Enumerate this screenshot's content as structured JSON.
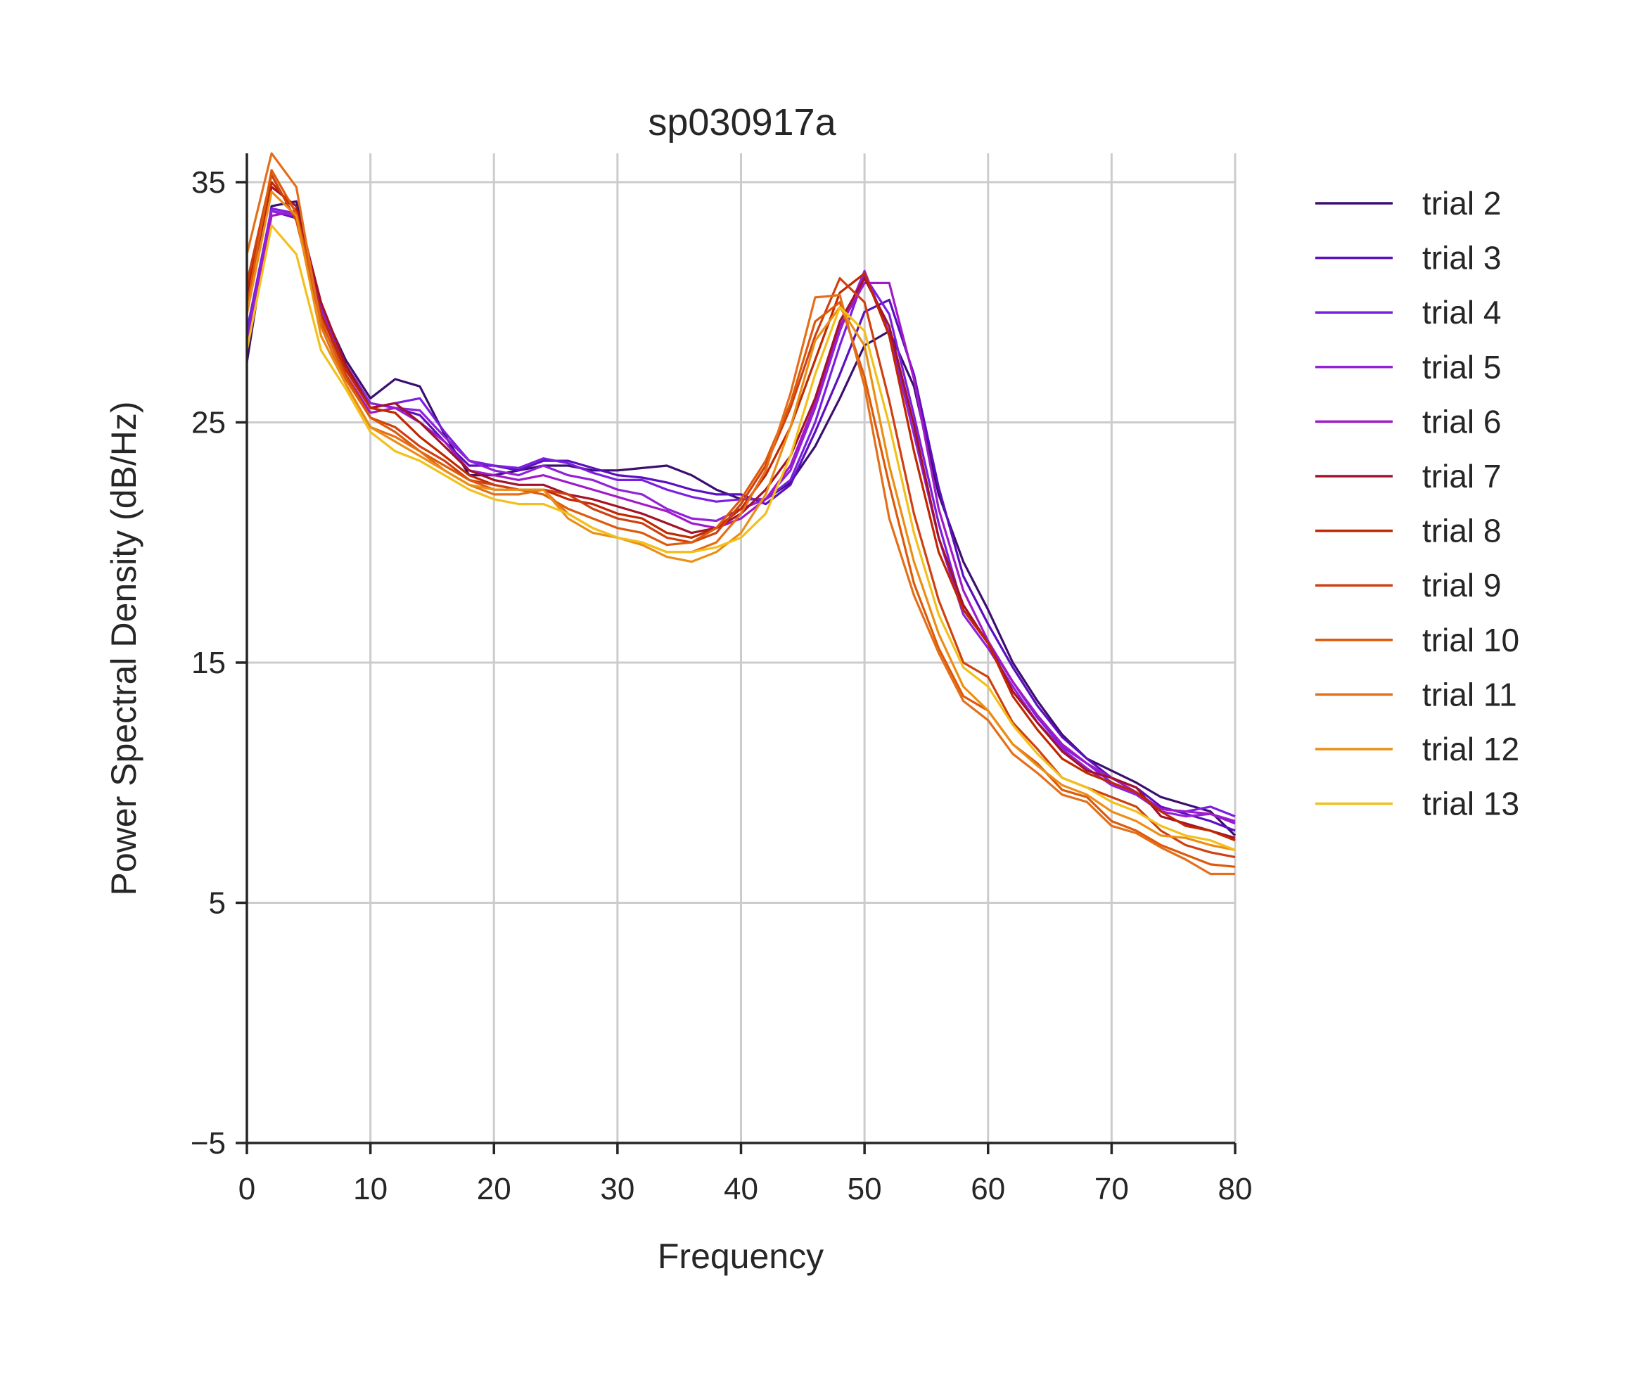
{
  "chart_data": {
    "type": "line",
    "title": "sp030917a",
    "xlabel": "Frequency",
    "ylabel": "Power Spectral Density (dB/Hz)",
    "xlim": [
      0,
      80
    ],
    "ylim": [
      -5,
      36.2
    ],
    "xticks": [
      0,
      10,
      20,
      30,
      40,
      50,
      60,
      70,
      80
    ],
    "yticks": [
      -5,
      5,
      15,
      25,
      35
    ],
    "ytick_labels": [
      "−5",
      "5",
      "15",
      "25",
      "35"
    ],
    "grid": true,
    "legend_position": "right",
    "x": [
      0,
      2,
      4,
      6,
      8,
      10,
      12,
      14,
      16,
      18,
      20,
      22,
      24,
      26,
      28,
      30,
      32,
      34,
      36,
      38,
      40,
      42,
      44,
      46,
      48,
      50,
      52,
      54,
      56,
      58,
      60,
      62,
      64,
      66,
      68,
      70,
      72,
      74,
      76,
      78,
      80
    ],
    "series": [
      {
        "name": "trial 2",
        "color": "#3b0f70",
        "values": [
          27.5,
          34.0,
          34.2,
          29.8,
          27.6,
          26.0,
          26.8,
          26.5,
          24.5,
          22.8,
          22.8,
          23.0,
          23.2,
          23.2,
          23.0,
          23.0,
          23.1,
          23.2,
          22.8,
          22.2,
          21.8,
          21.8,
          22.5,
          24.0,
          26.0,
          28.2,
          28.8,
          26.5,
          22.0,
          19.2,
          17.2,
          15.0,
          13.4,
          12.0,
          11.0,
          10.5,
          10.0,
          9.4,
          9.1,
          8.8,
          7.8
        ]
      },
      {
        "name": "trial 3",
        "color": "#5b0fbf",
        "values": [
          28.5,
          33.8,
          33.5,
          29.5,
          27.4,
          25.8,
          25.6,
          25.3,
          24.2,
          23.2,
          23.2,
          23.0,
          23.4,
          23.4,
          23.1,
          22.8,
          22.7,
          22.5,
          22.2,
          22.0,
          22.0,
          21.6,
          22.4,
          24.6,
          27.0,
          29.6,
          30.1,
          27.0,
          22.3,
          18.6,
          16.6,
          14.8,
          13.2,
          11.9,
          11.0,
          10.2,
          9.8,
          9.0,
          8.7,
          8.4,
          8.0
        ]
      },
      {
        "name": "trial 4",
        "color": "#7a1fe0",
        "values": [
          28.8,
          33.9,
          33.7,
          29.6,
          27.2,
          25.6,
          25.8,
          26.0,
          24.6,
          23.4,
          23.2,
          23.1,
          23.5,
          23.3,
          22.9,
          22.6,
          22.6,
          22.2,
          21.9,
          21.7,
          21.8,
          21.8,
          22.6,
          25.0,
          28.2,
          31.1,
          29.5,
          25.3,
          20.8,
          17.2,
          15.8,
          14.2,
          12.7,
          11.5,
          10.8,
          10.0,
          9.6,
          8.9,
          8.8,
          9.0,
          8.6
        ]
      },
      {
        "name": "trial 5",
        "color": "#9221d8",
        "values": [
          28.3,
          33.8,
          33.6,
          29.8,
          27.4,
          25.8,
          25.6,
          25.5,
          24.4,
          23.4,
          23.0,
          22.8,
          23.2,
          22.8,
          22.6,
          22.2,
          22.0,
          21.4,
          21.0,
          20.9,
          21.4,
          21.8,
          23.0,
          25.6,
          28.8,
          31.3,
          28.7,
          24.5,
          20.2,
          17.0,
          15.6,
          14.0,
          12.5,
          11.4,
          10.6,
          9.9,
          9.5,
          8.8,
          8.6,
          8.7,
          8.4
        ]
      },
      {
        "name": "trial 6",
        "color": "#a11ac8",
        "values": [
          28.0,
          33.6,
          33.8,
          29.6,
          27.0,
          25.4,
          25.6,
          25.0,
          24.2,
          23.0,
          22.8,
          22.6,
          22.8,
          22.5,
          22.2,
          21.9,
          21.6,
          21.3,
          20.8,
          20.6,
          21.0,
          21.8,
          23.2,
          25.8,
          29.0,
          30.8,
          30.8,
          26.8,
          21.4,
          18.0,
          15.9,
          14.2,
          12.8,
          11.6,
          10.8,
          10.2,
          9.6,
          8.9,
          8.8,
          8.7,
          8.3
        ]
      },
      {
        "name": "trial 7",
        "color": "#a3122a",
        "values": [
          30.2,
          34.8,
          34.0,
          30.0,
          27.4,
          25.6,
          25.8,
          25.0,
          24.0,
          23.0,
          22.6,
          22.4,
          22.4,
          22.0,
          21.8,
          21.5,
          21.2,
          20.8,
          20.4,
          20.6,
          21.2,
          22.2,
          23.6,
          26.0,
          29.2,
          31.0,
          29.0,
          24.9,
          20.2,
          17.4,
          15.8,
          13.8,
          12.5,
          11.3,
          10.5,
          10.2,
          9.8,
          8.6,
          8.3,
          8.0,
          7.7
        ]
      },
      {
        "name": "trial 8",
        "color": "#c02800",
        "values": [
          30.5,
          35.0,
          33.8,
          29.5,
          27.2,
          25.6,
          25.4,
          24.4,
          23.6,
          22.8,
          22.4,
          22.2,
          22.2,
          21.8,
          21.6,
          21.2,
          21.0,
          20.4,
          20.2,
          20.6,
          21.4,
          22.8,
          24.8,
          27.6,
          30.4,
          31.2,
          28.6,
          23.8,
          19.6,
          17.2,
          15.8,
          13.6,
          12.2,
          11.0,
          10.4,
          10.0,
          9.6,
          8.8,
          8.2,
          8.0,
          7.6
        ]
      },
      {
        "name": "trial 9",
        "color": "#cf4010",
        "values": [
          30.8,
          35.3,
          33.4,
          29.2,
          27.0,
          25.2,
          24.8,
          24.0,
          23.4,
          22.6,
          22.4,
          22.2,
          22.2,
          22.0,
          21.4,
          21.0,
          20.8,
          20.2,
          20.0,
          20.4,
          21.6,
          23.2,
          25.6,
          28.6,
          31.0,
          30.0,
          25.9,
          21.2,
          17.6,
          15.0,
          14.4,
          12.5,
          11.4,
          10.2,
          9.8,
          9.4,
          9.0,
          8.0,
          7.4,
          7.1,
          6.9
        ]
      },
      {
        "name": "trial 10",
        "color": "#dd5a0a",
        "values": [
          29.8,
          35.5,
          33.7,
          29.3,
          26.8,
          25.2,
          24.6,
          23.8,
          23.2,
          22.6,
          22.2,
          22.2,
          22.0,
          21.4,
          21.0,
          20.6,
          20.4,
          19.9,
          20.0,
          20.6,
          21.8,
          23.4,
          25.8,
          29.2,
          30.0,
          26.9,
          22.4,
          18.3,
          15.6,
          13.6,
          13.0,
          11.6,
          10.8,
          9.7,
          9.4,
          8.4,
          8.0,
          7.4,
          7.0,
          6.6,
          6.5
        ]
      },
      {
        "name": "trial 11",
        "color": "#e46f1a",
        "values": [
          32.0,
          36.2,
          34.8,
          29.0,
          26.6,
          24.8,
          24.4,
          23.8,
          23.0,
          22.4,
          22.0,
          22.0,
          22.2,
          21.2,
          20.6,
          20.2,
          20.0,
          19.6,
          19.6,
          20.0,
          21.2,
          23.0,
          26.2,
          30.2,
          30.3,
          26.5,
          21.0,
          17.8,
          15.4,
          13.4,
          12.6,
          11.2,
          10.4,
          9.5,
          9.2,
          8.2,
          7.9,
          7.3,
          6.8,
          6.2,
          6.2
        ]
      },
      {
        "name": "trial 12",
        "color": "#eb8e14",
        "values": [
          29.5,
          34.6,
          33.6,
          28.6,
          26.6,
          24.8,
          24.2,
          23.6,
          23.0,
          22.4,
          22.2,
          22.2,
          22.2,
          21.0,
          20.4,
          20.2,
          19.9,
          19.4,
          19.2,
          19.6,
          20.4,
          22.0,
          24.8,
          28.4,
          29.8,
          28.2,
          23.2,
          19.2,
          16.2,
          14.0,
          13.0,
          11.6,
          10.7,
          9.9,
          9.5,
          8.8,
          8.4,
          7.8,
          7.7,
          7.4,
          7.2
        ]
      },
      {
        "name": "trial 13",
        "color": "#f2c01a",
        "values": [
          28.0,
          33.2,
          32.0,
          28.0,
          26.4,
          24.6,
          23.8,
          23.4,
          22.8,
          22.2,
          21.8,
          21.6,
          21.6,
          21.2,
          20.6,
          20.2,
          20.0,
          19.6,
          19.6,
          19.8,
          20.2,
          21.2,
          23.6,
          27.0,
          29.8,
          28.8,
          24.9,
          20.4,
          17.0,
          14.8,
          14.0,
          12.4,
          11.2,
          10.2,
          9.8,
          9.2,
          8.8,
          8.2,
          7.8,
          7.6,
          7.2
        ]
      }
    ]
  }
}
